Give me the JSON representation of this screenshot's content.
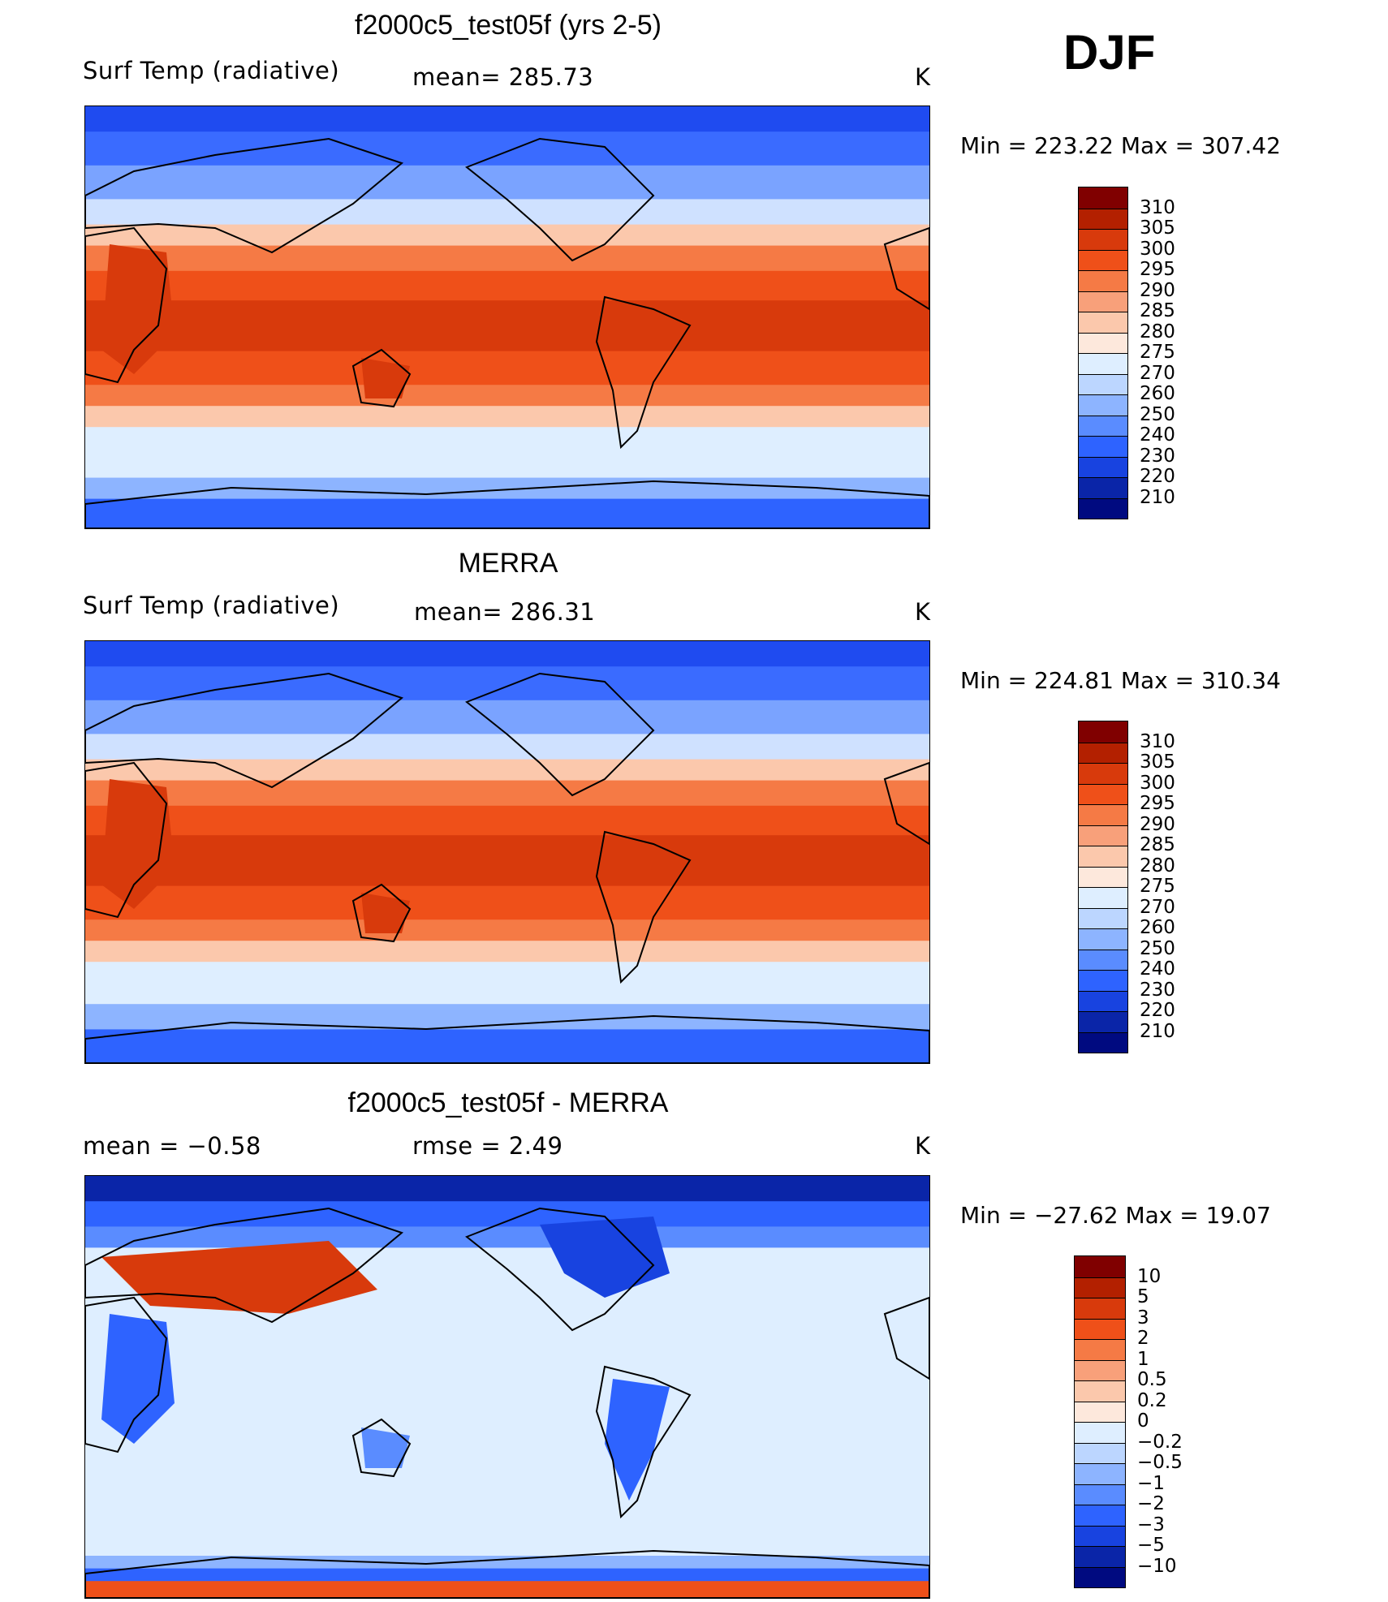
{
  "season": "DJF",
  "panels": [
    {
      "id": "model",
      "title": "f2000c5_test05f (yrs 2-5)",
      "left_label": "Surf Temp (radiative)",
      "center_label": "mean=  285.73",
      "units": "K",
      "minmax": "Min  =  223.22  Max  =  307.42",
      "colorbar": {
        "levels": [
          "310",
          "305",
          "300",
          "295",
          "290",
          "285",
          "280",
          "275",
          "270",
          "260",
          "250",
          "240",
          "230",
          "220",
          "210"
        ],
        "colors": [
          "#800000",
          "#b32000",
          "#d83a0c",
          "#ef5019",
          "#f57a45",
          "#f8a07a",
          "#fbc8ac",
          "#fde8dc",
          "#deeeff",
          "#bcd6ff",
          "#8db4ff",
          "#5a8cff",
          "#2e63ff",
          "#1843e0",
          "#0a25a8",
          "#000a80"
        ]
      }
    },
    {
      "id": "obs",
      "title": "MERRA",
      "left_label": "Surf Temp (radiative)",
      "center_label": "mean=  286.31",
      "units": "K",
      "minmax": "Min  =  224.81  Max  =  310.34",
      "colorbar": {
        "levels": [
          "310",
          "305",
          "300",
          "295",
          "290",
          "285",
          "280",
          "275",
          "270",
          "260",
          "250",
          "240",
          "230",
          "220",
          "210"
        ],
        "colors": [
          "#800000",
          "#b32000",
          "#d83a0c",
          "#ef5019",
          "#f57a45",
          "#f8a07a",
          "#fbc8ac",
          "#fde8dc",
          "#deeeff",
          "#bcd6ff",
          "#8db4ff",
          "#5a8cff",
          "#2e63ff",
          "#1843e0",
          "#0a25a8",
          "#000a80"
        ]
      }
    },
    {
      "id": "diff",
      "title": "f2000c5_test05f - MERRA",
      "left_label": "mean  =    −0.58",
      "center_label": "rmse  =     2.49",
      "units": "K",
      "minmax": "Min  =  −27.62  Max  =    19.07",
      "colorbar": {
        "levels": [
          "10",
          "5",
          "3",
          "2",
          "1",
          "0.5",
          "0.2",
          "0",
          "−0.2",
          "−0.5",
          "−1",
          "−2",
          "−3",
          "−5",
          "−10"
        ],
        "colors": [
          "#800000",
          "#b32000",
          "#d83a0c",
          "#ef5019",
          "#f57a45",
          "#f8a07a",
          "#fbc8ac",
          "#fde8dc",
          "#deeeff",
          "#bcd6ff",
          "#8db4ff",
          "#5a8cff",
          "#2e63ff",
          "#1843e0",
          "#0a25a8",
          "#000a80"
        ]
      }
    }
  ]
}
